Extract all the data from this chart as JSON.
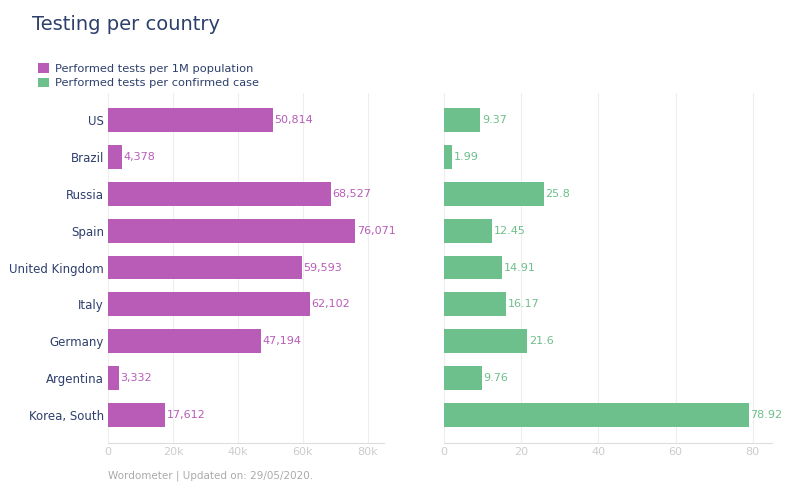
{
  "title": "Testing per country",
  "title_color": "#2d3f6c",
  "subtitle": "Wordometer | Updated on: 29/05/2020.",
  "legend": [
    {
      "label": "Performed tests per 1M population",
      "color": "#b85cb8"
    },
    {
      "label": "Performed tests per confirmed case",
      "color": "#6dbf8b"
    }
  ],
  "countries": [
    "US",
    "Brazil",
    "Russia",
    "Spain",
    "United Kingdom",
    "Italy",
    "Germany",
    "Argentina",
    "Korea, South"
  ],
  "tests_per_1m": [
    50814,
    4378,
    68527,
    76071,
    59593,
    62102,
    47194,
    3332,
    17612
  ],
  "tests_per_case": [
    9.37,
    1.99,
    25.8,
    12.45,
    14.91,
    16.17,
    21.6,
    9.76,
    78.92
  ],
  "bar_color_purple": "#b85cb8",
  "bar_color_green": "#6dbf8b",
  "label_color_purple": "#b85cb8",
  "label_color_green": "#6dbf8b",
  "background_color": "#ffffff",
  "left_xlim": [
    0,
    85000
  ],
  "right_xlim": [
    0,
    85
  ],
  "left_xticks": [
    0,
    20000,
    40000,
    60000,
    80000
  ],
  "left_xticklabels": [
    "0",
    "20k",
    "40k",
    "60k",
    "80k"
  ],
  "right_xticks": [
    0,
    20,
    40,
    60,
    80
  ],
  "right_xticklabels": [
    "0",
    "20",
    "40",
    "60",
    "80"
  ]
}
